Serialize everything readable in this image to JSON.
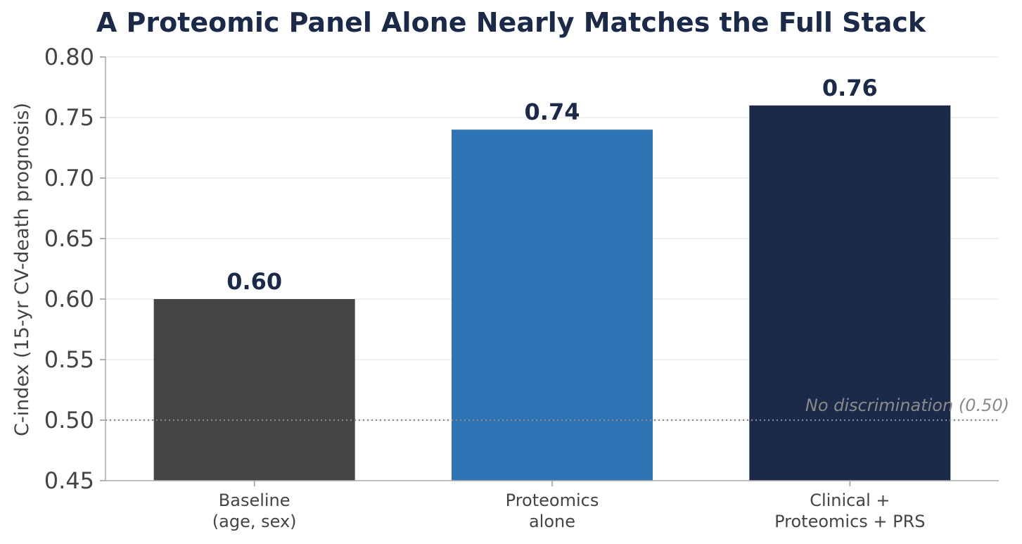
{
  "chart_data": {
    "type": "bar",
    "title": "A Proteomic Panel Alone Nearly Matches the Full Stack",
    "xlabel": "",
    "ylabel": "C-index (15-yr CV-death prognosis)",
    "categories": [
      [
        "Baseline",
        "(age, sex)"
      ],
      [
        "Proteomics",
        "alone"
      ],
      [
        "Clinical +",
        "Proteomics + PRS"
      ]
    ],
    "values": [
      0.6,
      0.74,
      0.76
    ],
    "value_labels": [
      "0.60",
      "0.74",
      "0.76"
    ],
    "bar_colors": [
      "#444444",
      "#2f74b5",
      "#1c2a4a"
    ],
    "ylim": [
      0.45,
      0.8
    ],
    "yticks": [
      "0.45",
      "0.50",
      "0.55",
      "0.60",
      "0.65",
      "0.70",
      "0.75",
      "0.80"
    ],
    "reference_line": {
      "value": 0.5,
      "label": "No discrimination (0.50)",
      "style": "dotted"
    },
    "grid": "horizontal",
    "legend": "none"
  }
}
